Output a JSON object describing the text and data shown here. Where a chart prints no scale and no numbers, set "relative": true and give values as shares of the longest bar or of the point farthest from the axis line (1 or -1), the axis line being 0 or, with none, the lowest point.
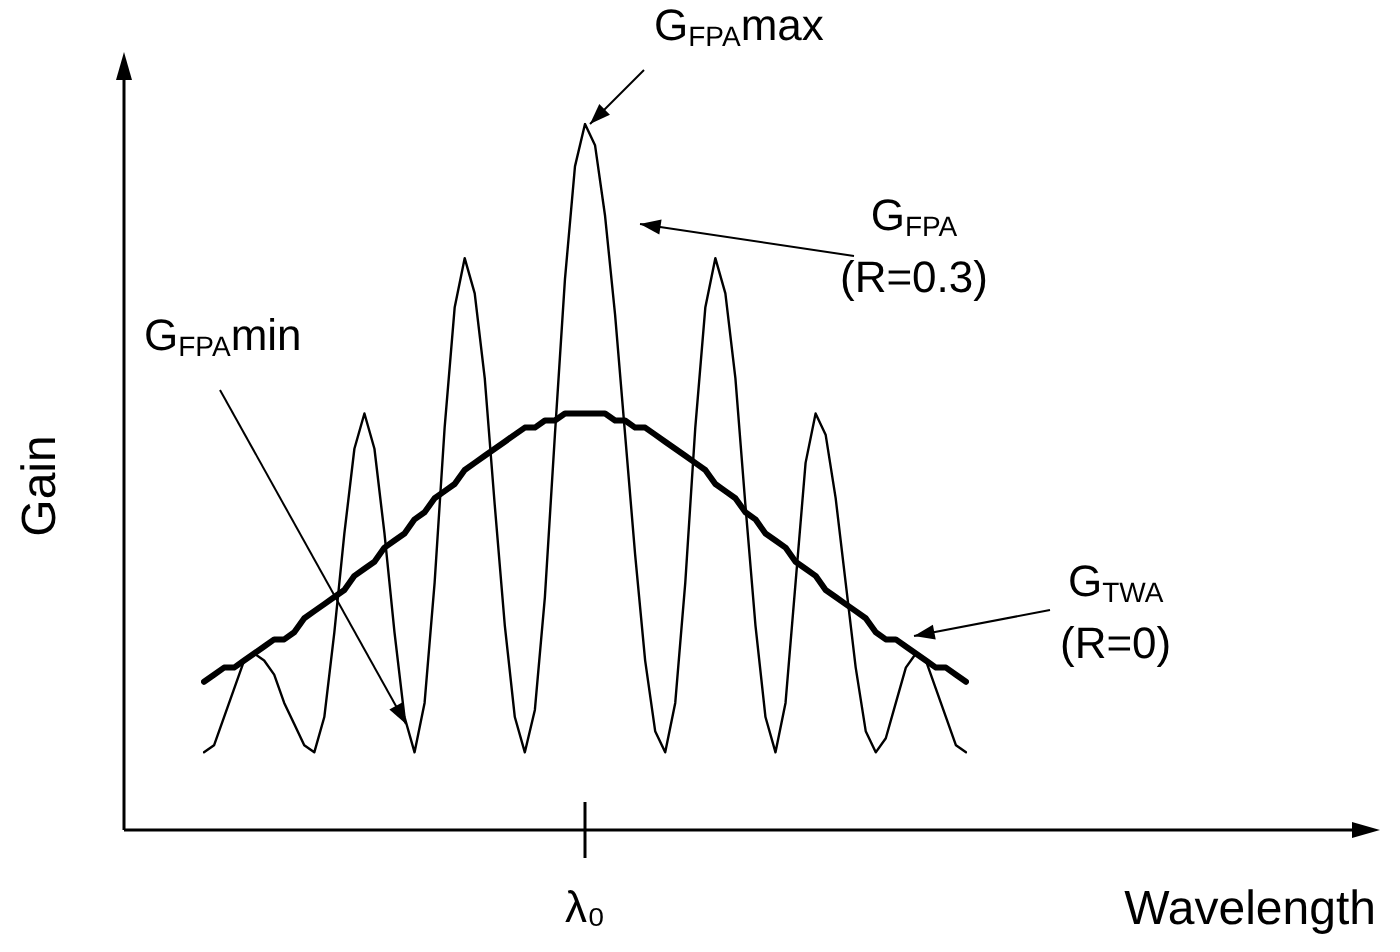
{
  "chart_data": {
    "type": "line",
    "relative": true,
    "xlabel": "Wavelength",
    "ylabel": "Gain",
    "legend": false,
    "marker": "none",
    "line_style": "solid",
    "categories": [
      null,
      null,
      null,
      null,
      null,
      null,
      null,
      null,
      null,
      null,
      null,
      null,
      null,
      null,
      null,
      null,
      null,
      null,
      null,
      null,
      null,
      null,
      null,
      null,
      null,
      null,
      null,
      null,
      null,
      null,
      null,
      null,
      null,
      null,
      null,
      null,
      null,
      null,
      null,
      null,
      null,
      null,
      null,
      null,
      null,
      null,
      null,
      null,
      null,
      null,
      null,
      null,
      null,
      null,
      null,
      null,
      null,
      null,
      null,
      null,
      null,
      null,
      null,
      null,
      null,
      null,
      null,
      null,
      null,
      null,
      null,
      null,
      null,
      null,
      null,
      null,
      null
    ],
    "series": [
      {
        "color": "#000000",
        "values": [
          0.11,
          0.12,
          0.16,
          0.2,
          0.24,
          0.25,
          0.24,
          0.22,
          0.18,
          0.15,
          0.12,
          0.11,
          0.16,
          0.28,
          0.42,
          0.54,
          0.59,
          0.54,
          0.42,
          0.28,
          0.16,
          0.11,
          0.18,
          0.35,
          0.57,
          0.74,
          0.81,
          0.76,
          0.64,
          0.46,
          0.29,
          0.16,
          0.11,
          0.17,
          0.33,
          0.56,
          0.78,
          0.94,
          1,
          0.97,
          0.87,
          0.73,
          0.56,
          0.39,
          0.24,
          0.14,
          0.11,
          0.18,
          0.35,
          0.57,
          0.74,
          0.81,
          0.76,
          0.64,
          0.46,
          0.29,
          0.16,
          0.11,
          0.18,
          0.35,
          0.52,
          0.59,
          0.56,
          0.47,
          0.35,
          0.23,
          0.14,
          0.11,
          0.13,
          0.18,
          0.23,
          0.25,
          0.24,
          0.2,
          0.16,
          0.12,
          0.11
        ]
      },
      {
        "color": "#000000",
        "values": [
          0.21,
          0.22,
          0.23,
          0.23,
          0.24,
          0.25,
          0.26,
          0.27,
          0.27,
          0.28,
          0.3,
          0.31,
          0.32,
          0.33,
          0.34,
          0.36,
          0.37,
          0.38,
          0.4,
          0.41,
          0.42,
          0.44,
          0.45,
          0.47,
          0.48,
          0.49,
          0.51,
          0.52,
          0.53,
          0.54,
          0.55,
          0.56,
          0.57,
          0.57,
          0.58,
          0.58,
          0.59,
          0.59,
          0.59,
          0.59,
          0.59,
          0.58,
          0.58,
          0.57,
          0.57,
          0.56,
          0.55,
          0.54,
          0.53,
          0.52,
          0.51,
          0.49,
          0.48,
          0.47,
          0.45,
          0.44,
          0.42,
          0.41,
          0.4,
          0.38,
          0.37,
          0.36,
          0.34,
          0.33,
          0.32,
          0.31,
          0.3,
          0.28,
          0.27,
          0.27,
          0.26,
          0.25,
          0.24,
          0.23,
          0.23,
          0.22,
          0.21
        ]
      }
    ],
    "annotations": [
      "G$_{FPA}$max",
      "G$_{FPA}$\n(R=0.3)",
      "G$_{FPA}$min",
      "G$_{TWA}$\n(R=0)",
      "λ₀"
    ]
  }
}
